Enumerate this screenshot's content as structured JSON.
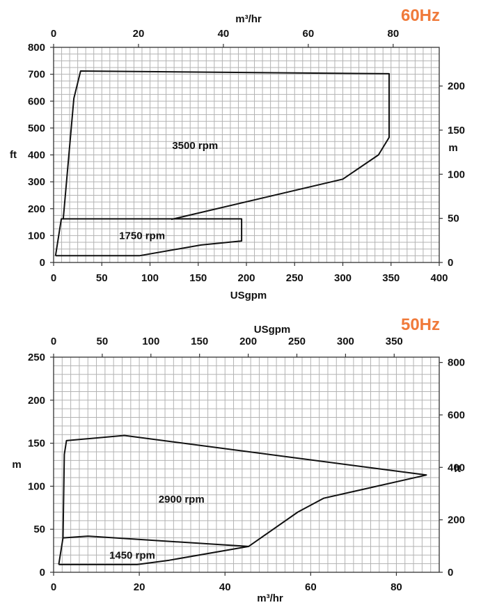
{
  "colors": {
    "accent": "#f07a3a",
    "grid": "#b3b3b3",
    "line": "#111111"
  },
  "chart_data": [
    {
      "type": "line",
      "title": "60Hz",
      "xlabel": "USgpm",
      "ylabel": "ft",
      "x2label": "m³/hr",
      "y2label": "m",
      "xlim": [
        0,
        400
      ],
      "ylim": [
        0,
        800
      ],
      "x2lim": [
        0,
        90.85
      ],
      "y2lim": [
        0,
        243.84
      ],
      "xticks": [
        "0",
        "50",
        "100",
        "150",
        "200",
        "250",
        "300",
        "350",
        "400"
      ],
      "yticks": [
        "0",
        "100",
        "200",
        "300",
        "400",
        "500",
        "600",
        "700",
        "800"
      ],
      "x2ticks": [
        "0",
        "20",
        "40",
        "60",
        "80"
      ],
      "y2ticks": [
        "0",
        "50",
        "100",
        "150",
        "200"
      ],
      "grid": true,
      "series": [
        {
          "name": "3500 rpm",
          "label_at": [
            123,
            435
          ],
          "points": [
            [
              10,
              160
            ],
            [
              21,
              610
            ],
            [
              28,
              712
            ],
            [
              348,
              702
            ],
            [
              348,
              465
            ],
            [
              337,
              400
            ],
            [
              300,
              310
            ],
            [
              122,
              160
            ]
          ]
        },
        {
          "name": "1750 rpm",
          "label_at": [
            68,
            100
          ],
          "points": [
            [
              2,
              25
            ],
            [
              8,
              162
            ],
            [
              195,
              162
            ],
            [
              195,
              80
            ],
            [
              153,
              65
            ],
            [
              89,
              25
            ],
            [
              2,
              25
            ]
          ]
        }
      ]
    },
    {
      "type": "line",
      "title": "50Hz",
      "xlabel": "m³/hr",
      "ylabel": "m",
      "x2label": "USgpm",
      "y2label": "ft",
      "xlim": [
        0,
        90
      ],
      "ylim": [
        0,
        250
      ],
      "x2lim": [
        0,
        396.3
      ],
      "y2lim": [
        0,
        820.2
      ],
      "xticks": [
        "0",
        "20",
        "40",
        "60",
        "80"
      ],
      "yticks": [
        "0",
        "50",
        "100",
        "150",
        "200",
        "250"
      ],
      "x2ticks": [
        "0",
        "50",
        "100",
        "150",
        "200",
        "250",
        "300",
        "350"
      ],
      "y2ticks": [
        "0",
        "200",
        "400",
        "600",
        "800"
      ],
      "grid": true,
      "series": [
        {
          "name": "2900 rpm",
          "label_at": [
            24.5,
            85
          ],
          "points": [
            [
              2.2,
              40
            ],
            [
              2.5,
              137
            ],
            [
              3,
              153
            ],
            [
              16.5,
              159
            ],
            [
              87,
              113
            ],
            [
              63,
              86
            ],
            [
              57,
              70
            ],
            [
              45.5,
              30
            ]
          ]
        },
        {
          "name": "1450 rpm",
          "label_at": [
            13,
            20
          ],
          "points": [
            [
              1.2,
              9
            ],
            [
              2.2,
              40
            ],
            [
              8,
              42
            ],
            [
              45.5,
              30
            ],
            [
              27,
              14
            ],
            [
              19.5,
              9
            ],
            [
              1.2,
              9
            ]
          ]
        }
      ]
    }
  ]
}
